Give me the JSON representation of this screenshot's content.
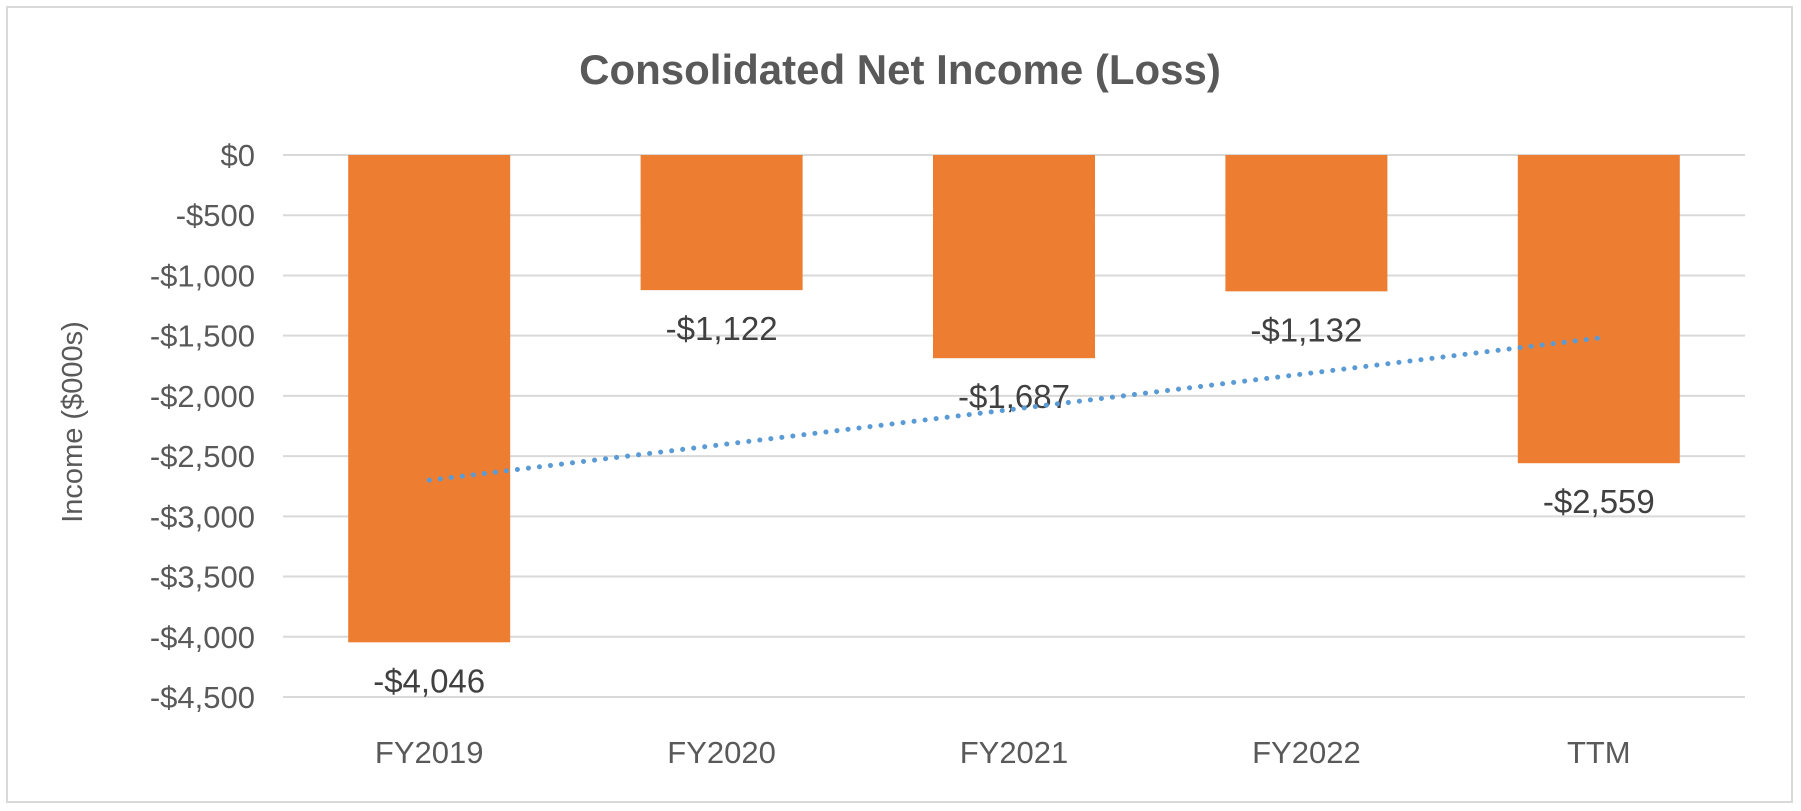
{
  "chart_data": {
    "type": "bar",
    "title": "Consolidated Net Income (Loss)",
    "ylabel": "Income ($000s)",
    "xlabel": "",
    "categories": [
      "FY2019",
      "FY2020",
      "FY2021",
      "FY2022",
      "TTM"
    ],
    "values": [
      -4046,
      -1122,
      -1687,
      -1132,
      -2559
    ],
    "data_labels": [
      "-$4,046",
      "-$1,122",
      "-$1,687",
      "-$1,132",
      "-$2,559"
    ],
    "ylim": [
      -4500,
      0
    ],
    "y_ticks": [
      0,
      -500,
      -1000,
      -1500,
      -2000,
      -2500,
      -3000,
      -3500,
      -4000,
      -4500
    ],
    "y_tick_labels": [
      "$0",
      "-$500",
      "-$1,000",
      "-$1,500",
      "-$2,000",
      "-$2,500",
      "-$3,000",
      "-$3,500",
      "-$4,000",
      "-$4,500"
    ],
    "grid": true,
    "legend": "none",
    "trendline": {
      "type": "linear",
      "style": "dotted",
      "start_value": -2700,
      "end_value": -1520
    },
    "colors": {
      "bar": "#ED7D31",
      "trendline": "#5B9BD5",
      "gridline": "#D9D9D9",
      "text": "#595959"
    }
  }
}
